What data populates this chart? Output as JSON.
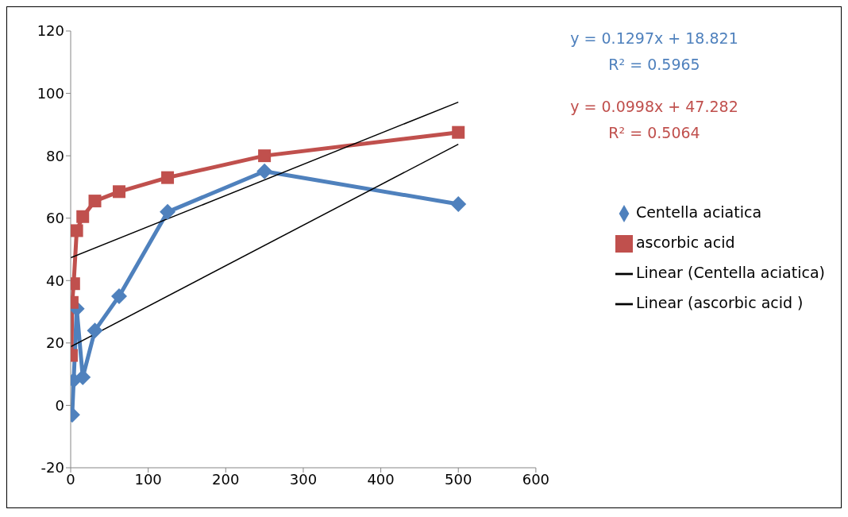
{
  "chart_data": {
    "type": "line",
    "annotations": [
      "y = 0.1297x + 18.821",
      "R² = 0.5965",
      "y = 0.0998x + 47.282",
      "R² = 0.5064"
    ],
    "xlim": [
      0,
      600
    ],
    "xticks": [
      0,
      100,
      200,
      300,
      400,
      500,
      600
    ],
    "ylim": [
      -20,
      120
    ],
    "yticks": [
      -20,
      0,
      20,
      40,
      60,
      80,
      100,
      120
    ],
    "grid": false,
    "legend": "right",
    "line_style": "solid",
    "series": [
      {
        "name": "Centella aciatica",
        "color": "#4f81bd",
        "marker": "diamond",
        "x": [
          1.95,
          3.9,
          7.8,
          15.6,
          31.25,
          62.5,
          125,
          250,
          500
        ],
        "values": [
          -3,
          8,
          31,
          9,
          24,
          35,
          62,
          75,
          64.5
        ]
      },
      {
        "name": "ascorbic acid",
        "color": "#c0504d",
        "marker": "square",
        "x": [
          0.98,
          1.95,
          3.9,
          7.8,
          15.6,
          31.25,
          62.5,
          125,
          250,
          500
        ],
        "values": [
          16,
          33,
          39,
          56,
          60.5,
          65.5,
          68.5,
          73,
          80,
          87.5
        ]
      },
      {
        "name": "Linear (Centella aciatica)",
        "color": "#000000",
        "marker": "none",
        "x": [
          0,
          500
        ],
        "values": [
          18.8,
          83.7
        ]
      },
      {
        "name": "Linear (ascorbic acid )",
        "color": "#000000",
        "marker": "none",
        "x": [
          0,
          500
        ],
        "values": [
          47.3,
          97.2
        ]
      }
    ]
  }
}
